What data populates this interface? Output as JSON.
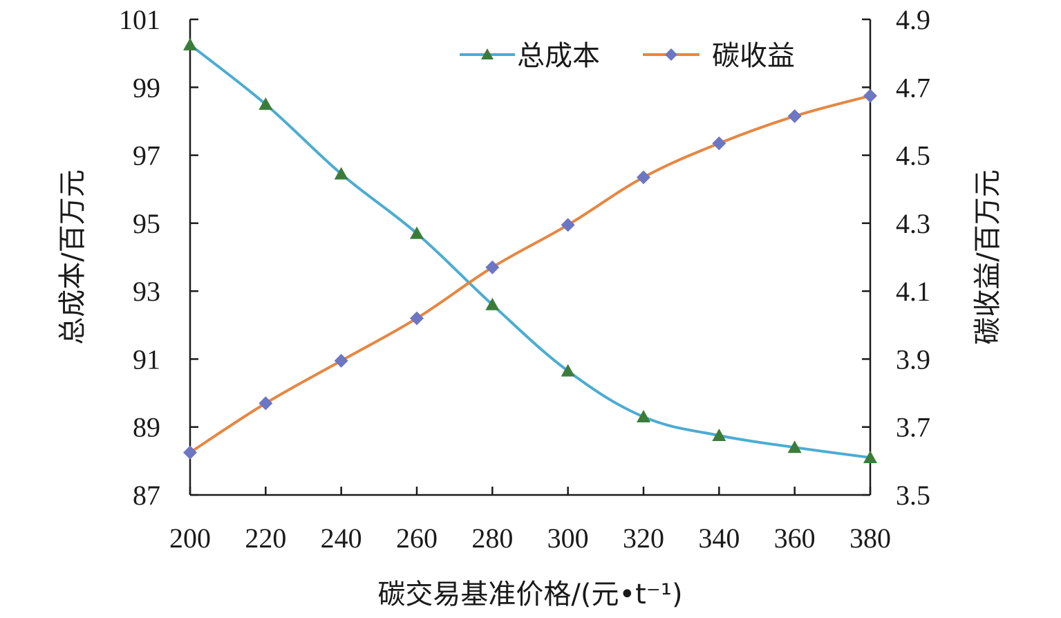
{
  "chart_data": {
    "type": "line",
    "title": "",
    "x": [
      200,
      220,
      240,
      260,
      280,
      300,
      320,
      340,
      360,
      380
    ],
    "xlabel": "碳交易基准价格/(元•t⁻¹)",
    "ylabel_left": "总成本/百万元",
    "ylabel_right": "碳收益/百万元",
    "ylim_left": [
      87,
      101
    ],
    "ylim_right": [
      3.5,
      4.9
    ],
    "yticks_left": [
      "87",
      "89",
      "91",
      "93",
      "95",
      "97",
      "99",
      "101"
    ],
    "yticks_right": [
      "3.5",
      "3.7",
      "3.9",
      "4.1",
      "4.3",
      "4.5",
      "4.7",
      "4.9"
    ],
    "xticks": [
      "200",
      "220",
      "240",
      "260",
      "280",
      "300",
      "320",
      "340",
      "360",
      "380"
    ],
    "legend_position": "top-right",
    "grid": false,
    "series": [
      {
        "name": "总成本",
        "axis": "left",
        "color": "#4bacd2",
        "marker_color": "#3a7d3a",
        "marker": "triangle",
        "values": [
          100.25,
          98.5,
          96.45,
          94.7,
          92.6,
          90.65,
          89.3,
          88.75,
          88.4,
          88.1
        ]
      },
      {
        "name": "碳收益",
        "axis": "right",
        "color": "#e58742",
        "marker_color": "#6c76c2",
        "marker": "diamond",
        "values": [
          3.625,
          3.77,
          3.895,
          4.02,
          4.17,
          4.295,
          4.435,
          4.535,
          4.615,
          4.675
        ]
      }
    ]
  }
}
